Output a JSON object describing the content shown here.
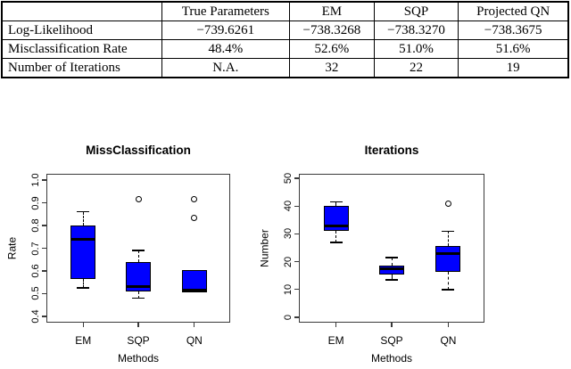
{
  "table": {
    "header": [
      "",
      "True Parameters",
      "EM",
      "SQP",
      "Projected QN"
    ],
    "rows": [
      [
        "Log-Likelihood",
        "−739.6261",
        "−738.3268",
        "−738.3270",
        "−738.3675"
      ],
      [
        "Misclassification Rate",
        "48.4%",
        "52.6%",
        "51.0%",
        "51.6%"
      ],
      [
        "Number of Iterations",
        "N.A.",
        "32",
        "22",
        "19"
      ]
    ]
  },
  "chart_data": [
    {
      "type": "boxplot",
      "title": "MissClassification",
      "xlabel": "Methods",
      "ylabel": "Rate",
      "categories": [
        "EM",
        "SQP",
        "QN"
      ],
      "ylim": [
        0.3725,
        1.0275
      ],
      "yticks": [
        0.4,
        0.5,
        0.6,
        0.7,
        0.8,
        0.9,
        1.0
      ],
      "ytick_labels": [
        "0.4",
        "0.5",
        "0.6",
        "0.7",
        "0.8",
        "0.9",
        "1.0"
      ],
      "grid": "off",
      "box_color": "#0000FF",
      "series": [
        {
          "name": "EM",
          "whislo": 0.525,
          "q1": 0.565,
          "med": 0.74,
          "q3": 0.8,
          "whishi": 0.86,
          "outliers": []
        },
        {
          "name": "SQP",
          "whislo": 0.48,
          "q1": 0.51,
          "med": 0.53,
          "q3": 0.64,
          "whishi": 0.69,
          "outliers": [
            0.915
          ]
        },
        {
          "name": "QN",
          "whislo": 0.505,
          "q1": 0.505,
          "med": 0.515,
          "q3": 0.605,
          "whishi": 0.605,
          "outliers": [
            0.835,
            0.915
          ]
        }
      ]
    },
    {
      "type": "boxplot",
      "title": "Iterations",
      "xlabel": "Methods",
      "ylabel": "Number",
      "categories": [
        "EM",
        "SQP",
        "QN"
      ],
      "ylim": [
        -1.9,
        51.6
      ],
      "yticks": [
        0,
        10,
        20,
        30,
        40,
        50
      ],
      "ytick_labels": [
        "0",
        "10",
        "20",
        "30",
        "40",
        "50"
      ],
      "grid": "off",
      "box_color": "#0000FF",
      "series": [
        {
          "name": "EM",
          "whislo": 27,
          "q1": 31,
          "med": 33,
          "q3": 40,
          "whishi": 41.5,
          "outliers": []
        },
        {
          "name": "SQP",
          "whislo": 13.5,
          "q1": 15.5,
          "med": 17.5,
          "q3": 18.5,
          "whishi": 21.5,
          "outliers": []
        },
        {
          "name": "QN",
          "whislo": 10,
          "q1": 16.5,
          "med": 23,
          "q3": 25.5,
          "whishi": 31,
          "outliers": [
            41
          ]
        }
      ]
    }
  ],
  "colors": {
    "box_fill": "#0000FF",
    "median": "#000000",
    "frame": "#3a3a3a",
    "text": "#000000"
  }
}
